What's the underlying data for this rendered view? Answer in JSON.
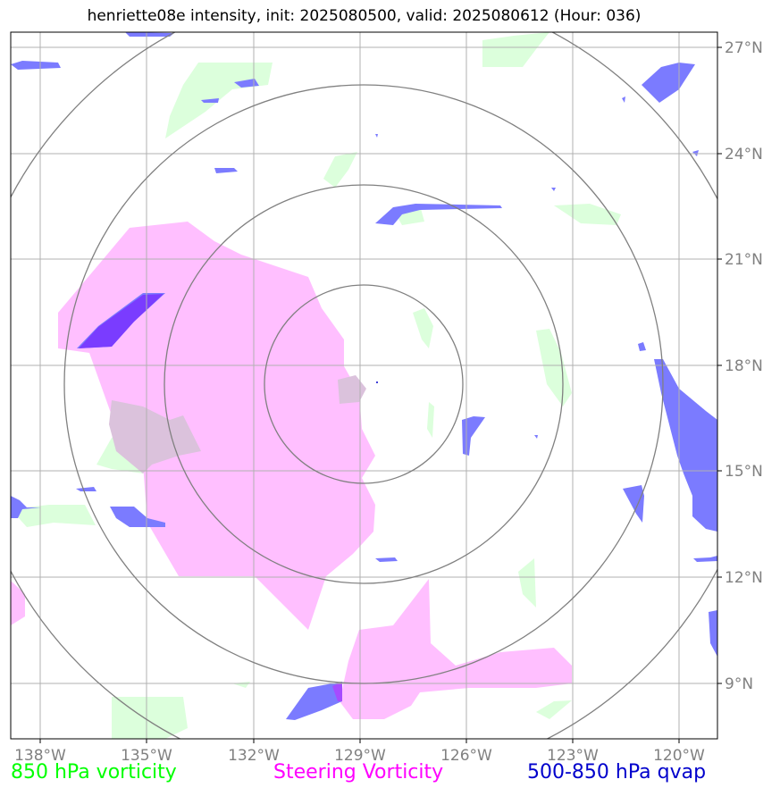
{
  "title": "henriette08e intensity, init: 2025080500, valid: 2025080612 (Hour: 036)",
  "map": {
    "lon_labels": [
      "138°W",
      "135°W",
      "132°W",
      "129°W",
      "126°W",
      "123°W",
      "120°W"
    ],
    "lat_labels": [
      "27°N",
      "24°N",
      "21°N",
      "18°N",
      "15°N",
      "12°N",
      "9°N"
    ],
    "center_lon": -129.0,
    "center_lat": 17.5
  },
  "legend": {
    "left": {
      "label": "850 hPa vorticity",
      "color": "#00ff00"
    },
    "center": {
      "label": "Steering Vorticity",
      "color": "#ff00ff"
    },
    "right": {
      "label": "500-850 hPa qvap",
      "color": "#0000cc"
    }
  },
  "colors": {
    "vorticity_850": "#dfffe0",
    "steering": "#ffbfff",
    "qvap": "#7b7bff",
    "grid": "#b0b0b0",
    "rings": "#808080"
  }
}
